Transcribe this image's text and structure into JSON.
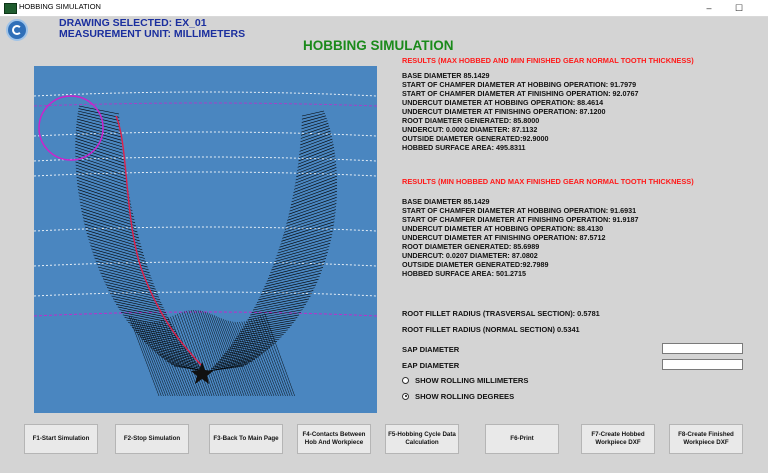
{
  "window": {
    "title": "HOBBING SIMULATION",
    "controls": {
      "minimize": "–",
      "maximize": "☐"
    }
  },
  "header": {
    "drawing": "DRAWING SELECTED: EX_01",
    "unit": "MEASUREMENT UNIT: MILLIMETERS"
  },
  "main_title": "HOBBING SIMULATION",
  "results_max": {
    "heading": "RESULTS (MAX HOBBED AND MIN FINISHED GEAR NORMAL TOOTH THICKNESS)",
    "lines": [
      "BASE DIAMETER  85.1429",
      "START OF CHAMFER DIAMETER AT HOBBING OPERATION: 91.7979",
      "START OF CHAMFER DIAMETER AT FINISHING OPERATION: 92.0767",
      "UNDERCUT DIAMETER AT HOBBING OPERATION: 88.4614",
      "UNDERCUT DIAMETER AT FINISHING OPERATION: 87.1200",
      "ROOT DIAMETER GENERATED: 85.8000",
      "UNDERCUT: 0.0002 DIAMETER: 87.1132",
      "OUTSIDE DIAMETER GENERATED:92.9000",
      "HOBBED SURFACE AREA: 495.8311"
    ]
  },
  "results_min": {
    "heading": "RESULTS (MIN HOBBED AND MAX FINISHED GEAR NORMAL TOOTH THICKNESS)",
    "lines": [
      "BASE DIAMETER  85.1429",
      "START OF CHAMFER DIAMETER AT HOBBING OPERATION: 91.6931",
      "START OF CHAMFER DIAMETER AT FINISHING OPERATION: 91.9187",
      "UNDERCUT DIAMETER AT HOBBING OPERATION: 88.4130",
      "UNDERCUT DIAMETER AT FINISHING OPERATION: 87.5712",
      "ROOT DIAMETER GENERATED: 85.6989",
      "UNDERCUT: 0.0207 DIAMETER: 87.0802",
      "OUTSIDE DIAMETER GENERATED:92.7989",
      "HOBBED SURFACE AREA: 501.2715"
    ]
  },
  "fillet": {
    "transversal": "ROOT FILLET RADIUS (TRASVERSAL SECTION): 0.5781",
    "normal": "ROOT FILLET RADIUS (NORMAL  SECTION) 0.5341"
  },
  "fields": {
    "sap": {
      "label": "SAP DIAMETER",
      "value": ""
    },
    "eap": {
      "label": "EAP DIAMETER",
      "value": ""
    }
  },
  "radios": [
    {
      "label": "SHOW ROLLING MILLIMETERS",
      "selected": false
    },
    {
      "label": "SHOW ROLLING DEGREES",
      "selected": true
    }
  ],
  "buttons": [
    "F1-Start Simulation",
    "F2-Stop Simulation",
    "F3-Back To Main Page",
    "F4-Contacts Between Hob And Workpiece",
    "F5-Hobbing Cycle Data Calculation",
    "F6-Print",
    "F7-Create Hobbed Workpiece DXF",
    "F8-Create Finished Workpiece DXF"
  ],
  "colors": {
    "panel": "#4a86c0",
    "result_heading": "#ff1a1a",
    "title": "#1a8a1a",
    "header_text": "#1b2f9e",
    "profile_line": "#e0204a",
    "circle": "#cc22cc"
  }
}
